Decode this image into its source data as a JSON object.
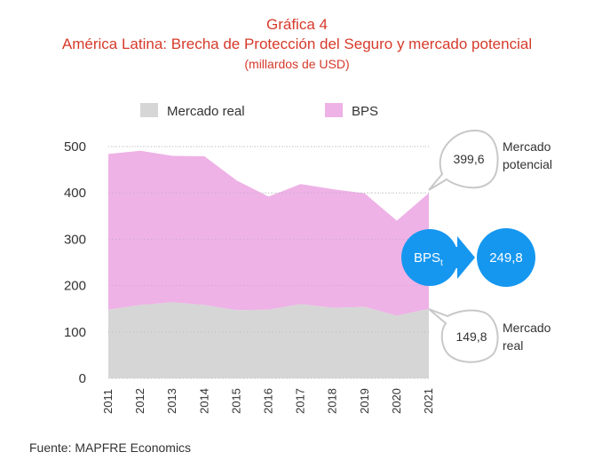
{
  "header": {
    "title": "Gráfica 4",
    "subtitle": "América Latina: Brecha de Protección del Seguro y mercado potencial",
    "units": "(millardos de USD)"
  },
  "legend": {
    "real_label": "Mercado real",
    "bps_label": "BPS"
  },
  "colors": {
    "title": "#d63a2b",
    "real": "#d6d6d6",
    "bps": "#eeb2e6",
    "accent_blue": "#1597f0"
  },
  "annotations": {
    "potential_value": "399,6",
    "potential_label_line1": "Mercado",
    "potential_label_line2": "potencial",
    "real_value": "149,8",
    "real_label_line1": "Mercado",
    "real_label_line2": "real",
    "bps_badge": "BPS",
    "bps_badge_sub": "t",
    "bps_value": "249,8"
  },
  "source": "Fuente: MAPFRE Economics",
  "chart_data": {
    "type": "area",
    "stacked": true,
    "categories": [
      "2011",
      "2012",
      "2013",
      "2014",
      "2015",
      "2016",
      "2017",
      "2018",
      "2019",
      "2020",
      "2021"
    ],
    "series": [
      {
        "name": "Mercado real",
        "values": [
          148,
          158,
          164,
          158,
          147,
          148,
          160,
          152,
          154,
          135,
          149.8
        ]
      },
      {
        "name": "BPS",
        "values": [
          336,
          333,
          316,
          321,
          280,
          244,
          259,
          256,
          245,
          205,
          249.8
        ]
      }
    ],
    "totals": [
      484,
      491,
      480,
      479,
      427,
      392,
      419,
      408,
      399,
      340,
      399.6
    ],
    "ylim": [
      0,
      500
    ],
    "yticks": [
      "0",
      "100",
      "200",
      "300",
      "400",
      "500"
    ],
    "grid": true,
    "legend_position": "top"
  }
}
